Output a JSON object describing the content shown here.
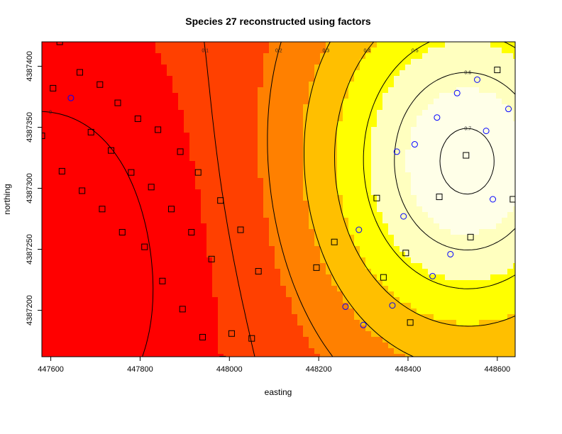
{
  "chart_data": {
    "type": "contour",
    "title": "Species 27 reconstructed using factors",
    "xlabel": "easting",
    "ylabel": "northing",
    "xlim": [
      447580,
      448640
    ],
    "ylim": [
      4387162,
      4387420
    ],
    "x_ticks": [
      {
        "value": 447600,
        "label": "447600"
      },
      {
        "value": 447800,
        "label": "447800"
      },
      {
        "value": 448000,
        "label": "448000"
      },
      {
        "value": 448200,
        "label": "448200"
      },
      {
        "value": 448400,
        "label": "448400"
      },
      {
        "value": 448600,
        "label": "448600"
      }
    ],
    "y_ticks": [
      {
        "value": 4387200,
        "label": "4387200"
      },
      {
        "value": 4387250,
        "label": "4387250"
      },
      {
        "value": 4387300,
        "label": "4387300"
      },
      {
        "value": 4387350,
        "label": "4387350"
      },
      {
        "value": 4387400,
        "label": "4387400"
      }
    ],
    "field": {
      "peak_value": 0.72,
      "peak_easting": 448530,
      "peak_northing": 4387322,
      "low_value": -0.05,
      "low_easting": 447580,
      "low_northing": 4387230
    },
    "color_scale": [
      "#ff0000",
      "#ff4000",
      "#ff8000",
      "#ffbf00",
      "#ffff00",
      "#ffffbf",
      "#ffffe8"
    ],
    "contour_levels": [
      {
        "level": 0,
        "label": "0"
      },
      {
        "level": 0.1,
        "label": "0.1"
      },
      {
        "level": 0.2,
        "label": "0.2"
      },
      {
        "level": 0.3,
        "label": "0.3"
      },
      {
        "level": 0.4,
        "label": "0.4"
      },
      {
        "level": 0.5,
        "label": "0.5"
      },
      {
        "level": 0.6,
        "label": "0.6"
      },
      {
        "level": 0.7,
        "label": "0.7"
      }
    ],
    "series": [
      {
        "marker": "square",
        "color": "#000000",
        "points": [
          [
            447620,
            4387420
          ],
          [
            447665,
            4387395
          ],
          [
            447605,
            4387382
          ],
          [
            447710,
            4387385
          ],
          [
            447750,
            4387370
          ],
          [
            447795,
            4387357
          ],
          [
            447840,
            4387348
          ],
          [
            447690,
            4387346
          ],
          [
            447580,
            4387343
          ],
          [
            447735,
            4387331
          ],
          [
            447890,
            4387330
          ],
          [
            447625,
            4387314
          ],
          [
            447780,
            4387313
          ],
          [
            447930,
            4387313
          ],
          [
            447825,
            4387301
          ],
          [
            447670,
            4387298
          ],
          [
            447980,
            4387290
          ],
          [
            447715,
            4387283
          ],
          [
            447870,
            4387283
          ],
          [
            447760,
            4387264
          ],
          [
            447915,
            4387264
          ],
          [
            448025,
            4387266
          ],
          [
            447810,
            4387252
          ],
          [
            447960,
            4387242
          ],
          [
            447850,
            4387224
          ],
          [
            448065,
            4387232
          ],
          [
            447895,
            4387201
          ],
          [
            447940,
            4387178
          ],
          [
            448005,
            4387181
          ],
          [
            448050,
            4387177
          ],
          [
            447985,
            4387160
          ],
          [
            448025,
            4387144
          ],
          [
            448195,
            4387235
          ],
          [
            448235,
            4387256
          ],
          [
            448210,
            4387155
          ],
          [
            448225,
            4387124
          ],
          [
            448285,
            4387131
          ],
          [
            448320,
            4387140
          ],
          [
            448345,
            4387227
          ],
          [
            448395,
            4387247
          ],
          [
            448330,
            4387292
          ],
          [
            448405,
            4387190
          ],
          [
            448470,
            4387293
          ],
          [
            448540,
            4387260
          ],
          [
            448530,
            4387327
          ],
          [
            448600,
            4387397
          ],
          [
            448635,
            4387291
          ]
        ]
      },
      {
        "marker": "circle",
        "color": "#0000ff",
        "points": [
          [
            447645,
            4387374
          ],
          [
            448290,
            4387266
          ],
          [
            448260,
            4387203
          ],
          [
            448300,
            4387188
          ],
          [
            448365,
            4387204
          ],
          [
            448375,
            4387330
          ],
          [
            448415,
            4387336
          ],
          [
            448390,
            4387277
          ],
          [
            448455,
            4387228
          ],
          [
            448495,
            4387246
          ],
          [
            448465,
            4387358
          ],
          [
            448510,
            4387378
          ],
          [
            448555,
            4387389
          ],
          [
            448575,
            4387347
          ],
          [
            448590,
            4387291
          ],
          [
            448625,
            4387365
          ]
        ]
      }
    ]
  }
}
